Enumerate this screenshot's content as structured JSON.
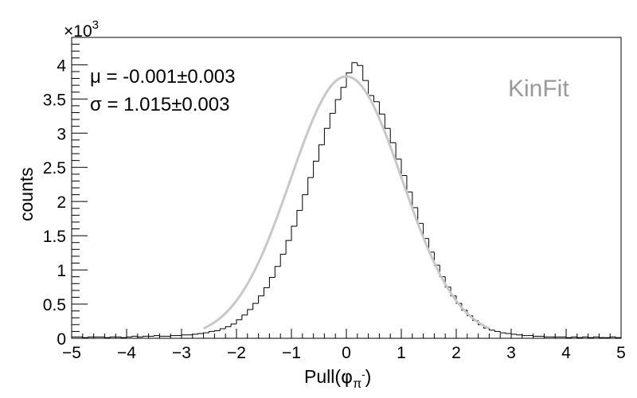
{
  "chart_data": {
    "type": "histogram",
    "xlabel": "Pull(",
    "xlabel_phi": "φ",
    "xlabel_sub": "π",
    "xlabel_sup": "-",
    "xlabel_close": ")",
    "ylabel": "counts",
    "y_multiplier_base": "×10",
    "y_multiplier_exp": "3",
    "xlim": [
      -5,
      5
    ],
    "ylim": [
      0,
      4.4
    ],
    "x_ticks": [
      {
        "value": -5,
        "label": "−5"
      },
      {
        "value": -4,
        "label": "−4"
      },
      {
        "value": -3,
        "label": "−3"
      },
      {
        "value": -2,
        "label": "−2"
      },
      {
        "value": -1,
        "label": "−1"
      },
      {
        "value": 0,
        "label": "0"
      },
      {
        "value": 1,
        "label": "1"
      },
      {
        "value": 2,
        "label": "2"
      },
      {
        "value": 3,
        "label": "3"
      },
      {
        "value": 4,
        "label": "4"
      },
      {
        "value": 5,
        "label": "5"
      }
    ],
    "y_ticks": [
      {
        "value": 0,
        "label": "0"
      },
      {
        "value": 0.5,
        "label": "0.5"
      },
      {
        "value": 1,
        "label": "1"
      },
      {
        "value": 1.5,
        "label": "1.5"
      },
      {
        "value": 2,
        "label": "2"
      },
      {
        "value": 2.5,
        "label": "2.5"
      },
      {
        "value": 3,
        "label": "3"
      },
      {
        "value": 3.5,
        "label": "3.5"
      },
      {
        "value": 4,
        "label": "4"
      }
    ],
    "stats": {
      "mu_label": "μ = -0.001±0.003",
      "sigma_label": "σ = 1.015±0.003"
    },
    "annotation": "KinFit",
    "histogram": {
      "bin_width": 0.1,
      "bin_start": -5.0,
      "counts": [
        0.02,
        0.02,
        0.01,
        0.02,
        0.02,
        0.02,
        0.01,
        0.02,
        0.02,
        0.01,
        0.02,
        0.03,
        0.02,
        0.03,
        0.03,
        0.04,
        0.03,
        0.03,
        0.04,
        0.04,
        0.05,
        0.05,
        0.06,
        0.07,
        0.08,
        0.1,
        0.11,
        0.14,
        0.17,
        0.21,
        0.27,
        0.34,
        0.42,
        0.51,
        0.62,
        0.74,
        0.89,
        1.05,
        1.23,
        1.43,
        1.64,
        1.87,
        2.1,
        2.35,
        2.59,
        2.83,
        3.07,
        3.29,
        3.49,
        3.67,
        3.88,
        4.03,
        3.99,
        3.77,
        3.55,
        3.46,
        3.28,
        3.07,
        2.86,
        2.62,
        2.38,
        2.14,
        1.91,
        1.68,
        1.46,
        1.26,
        1.07,
        0.9,
        0.75,
        0.62,
        0.51,
        0.41,
        0.33,
        0.26,
        0.2,
        0.15,
        0.12,
        0.1,
        0.08,
        0.07,
        0.06,
        0.05,
        0.04,
        0.04,
        0.03,
        0.03,
        0.02,
        0.02,
        0.02,
        0.02,
        0.01,
        0.02,
        0.01,
        0.02,
        0.01,
        0.02,
        0.01,
        0.01,
        0.02,
        0.01
      ]
    },
    "fit": {
      "mu": -0.001,
      "sigma": 1.015,
      "amplitude": 3.83,
      "range": [
        -2.6,
        2.6
      ],
      "color": "#c8c8c8"
    },
    "histogram_color": "#000000",
    "grid": false
  }
}
